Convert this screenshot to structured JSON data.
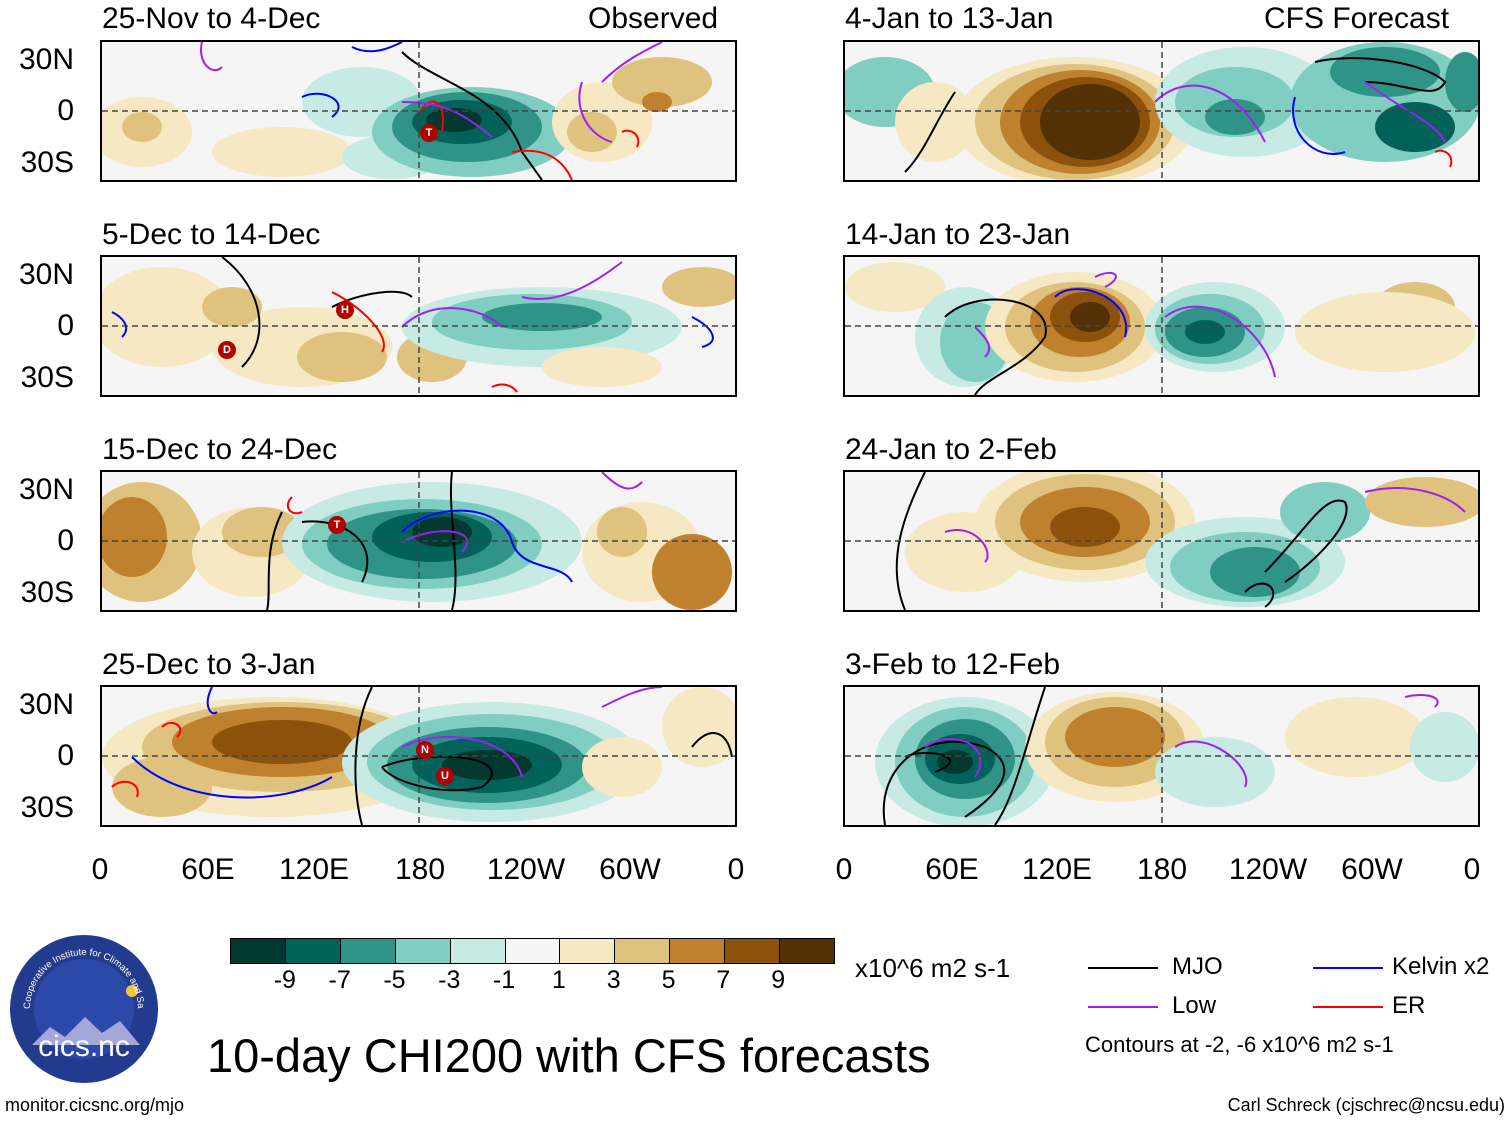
{
  "figure": {
    "title": "10-day CHI200 with CFS forecasts",
    "units": "x10^6 m2 s-1",
    "site_url": "monitor.cicsnc.org/mjo",
    "credit": "Carl Schreck (cjschrec@ncsu.edu)",
    "logo_text": "cics.nc",
    "logo_ring_text": "Cooperative Institute for Climate and Satellites"
  },
  "columns": {
    "left_header": "Observed",
    "right_header": "CFS Forecast"
  },
  "panels_left": [
    {
      "period": "25-Nov to 4-Dec"
    },
    {
      "period": "5-Dec to 14-Dec"
    },
    {
      "period": "15-Dec to 24-Dec"
    },
    {
      "period": "25-Dec to 3-Jan"
    }
  ],
  "panels_right": [
    {
      "period": "4-Jan to 13-Jan"
    },
    {
      "period": "14-Jan to 23-Jan"
    },
    {
      "period": "24-Jan to 2-Feb"
    },
    {
      "period": "3-Feb to 12-Feb"
    }
  ],
  "axes": {
    "y_labels": [
      "30N",
      "0",
      "30S"
    ],
    "x_labels": [
      "0",
      "60E",
      "120E",
      "180",
      "120W",
      "60W",
      "0"
    ]
  },
  "colorbar": {
    "colors": [
      "#01382f",
      "#006259",
      "#2f9387",
      "#80cdc1",
      "#c7eae5",
      "#f5f5f5",
      "#f6e8c3",
      "#dfc27d",
      "#bf812d",
      "#8c510a",
      "#543005"
    ],
    "labels": [
      "-9",
      "-7",
      "-5",
      "-3",
      "-1",
      "1",
      "3",
      "5",
      "7",
      "9"
    ]
  },
  "legend": {
    "items": [
      {
        "label": "MJO",
        "color": "#000000"
      },
      {
        "label": "Kelvin x2",
        "color": "#0000ff"
      },
      {
        "label": "Low",
        "color": "#a020f0"
      },
      {
        "label": "ER",
        "color": "#ff0000"
      }
    ],
    "note": "Contours at -2, -6 x10^6 m2 s-1"
  },
  "storm_markers": {
    "panel_1": [
      "T"
    ],
    "panel_2": [
      "H",
      "D"
    ],
    "panel_3": [
      "T"
    ],
    "panel_4": [
      "N",
      "U"
    ]
  }
}
